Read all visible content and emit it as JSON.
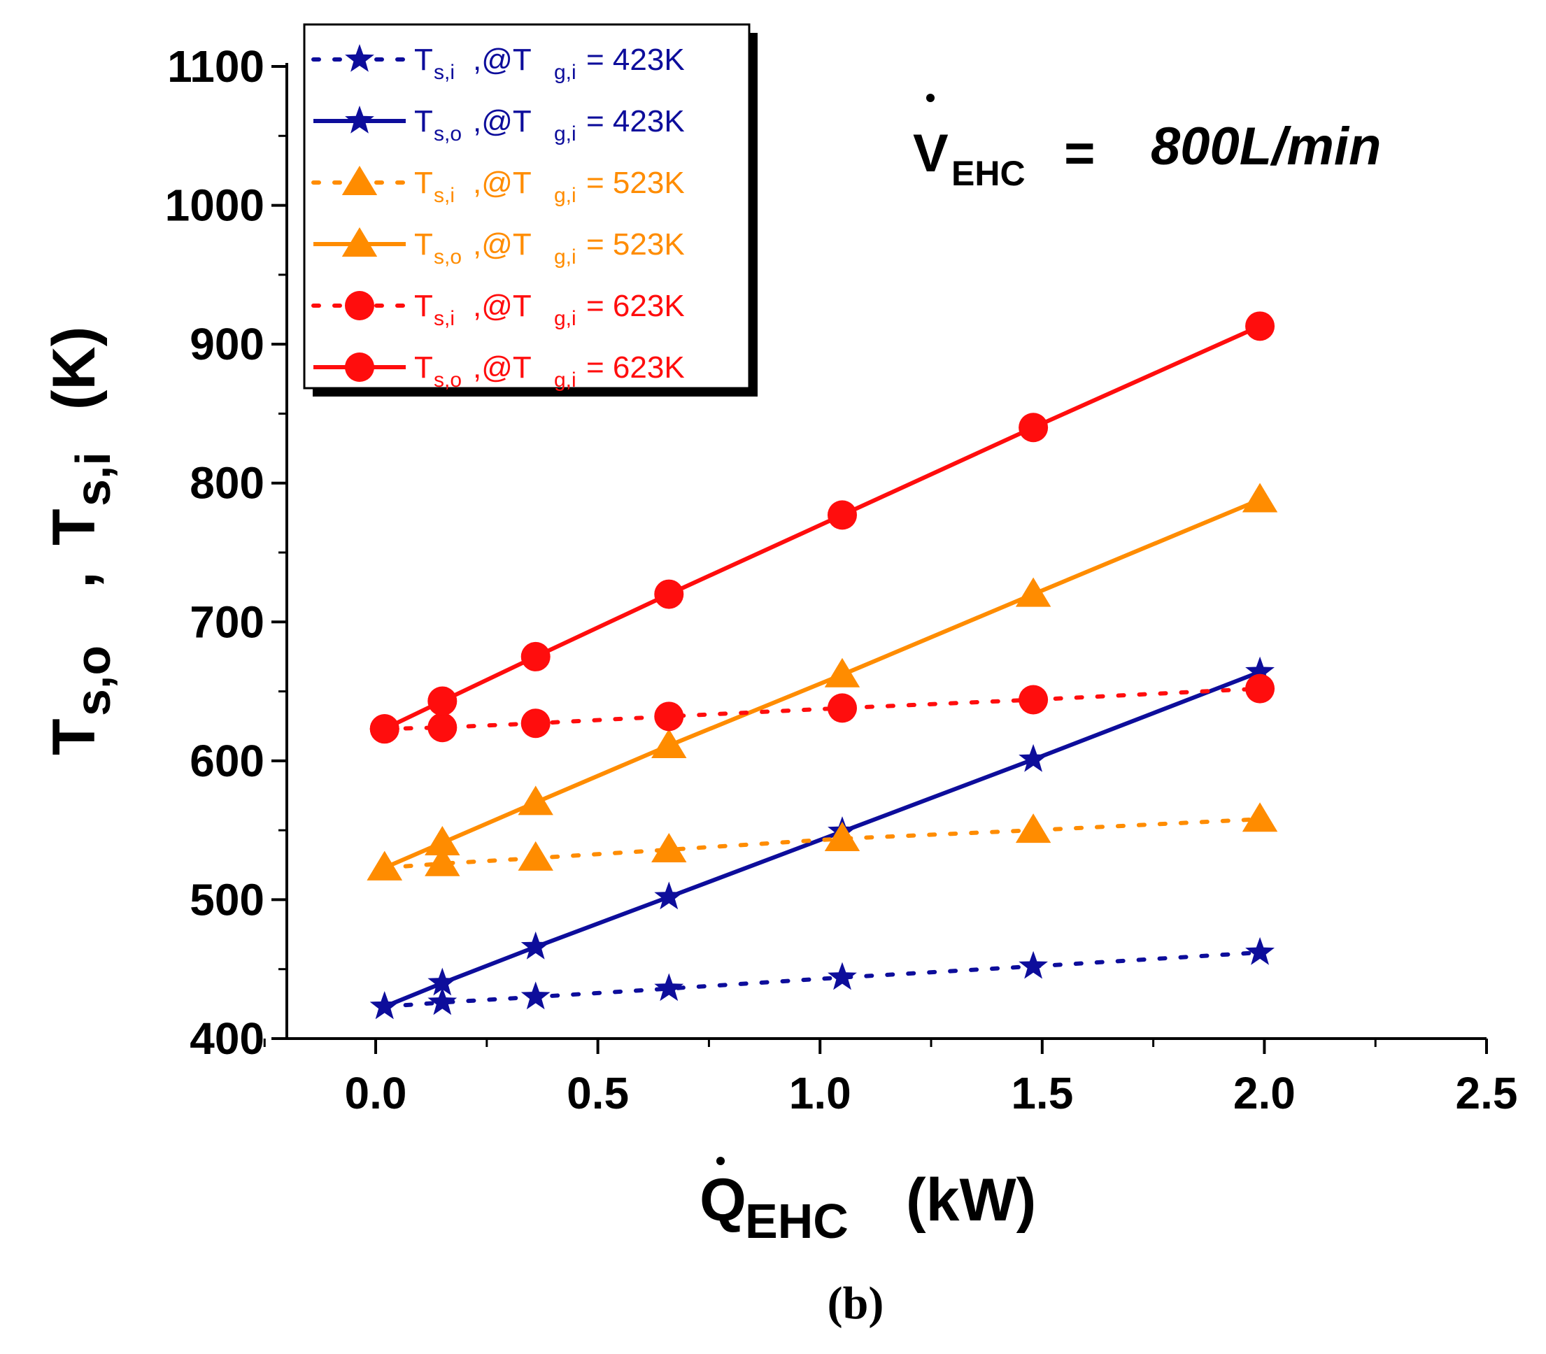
{
  "chart_data": {
    "type": "line",
    "xlabel_main": "Q",
    "xlabel_sub": "EHC",
    "xlabel_unit": "(kW)",
    "ylabel": "T s,o , T s,i (K)",
    "ylabel_parts": {
      "t1": "T",
      "s1": "s,o",
      "sep": " , ",
      "t2": "T",
      "s2": "s,i",
      "unit": " (K)"
    },
    "xlim": [
      -0.2,
      2.5
    ],
    "ylim": [
      400,
      1100
    ],
    "xticks": [
      0.0,
      0.5,
      1.0,
      1.5,
      2.0,
      2.5
    ],
    "xtick_labels": [
      "0.0",
      "0.5",
      "1.0",
      "1.5",
      "2.0",
      "2.5"
    ],
    "yticks": [
      400,
      500,
      600,
      700,
      800,
      900,
      1000,
      1100
    ],
    "ytick_labels": [
      "400",
      "500",
      "600",
      "700",
      "800",
      "900",
      "1000",
      "1100"
    ],
    "annotation": {
      "main": "V",
      "sub": "EHC",
      "eq": " = ",
      "value": "800L/min"
    },
    "caption": "(b)",
    "series": [
      {
        "name": "T s,i ,@T g,i = 423K",
        "var": "T",
        "var_sub": "s,i",
        "cond": " ,@T",
        "cond_sub": "g,i",
        "value": " =  423K",
        "color": "#0d0d9b",
        "marker": "star",
        "style": "dotted",
        "x": [
          0.02,
          0.15,
          0.36,
          0.66,
          1.05,
          1.48,
          1.99
        ],
        "y": [
          423,
          426,
          430,
          436,
          444,
          452,
          462
        ]
      },
      {
        "name": "T s,o ,@T g,i = 423K",
        "var": "T",
        "var_sub": "s,o",
        "cond": " ,@T",
        "cond_sub": "g,i",
        "value": " =  423K",
        "color": "#0d0d9b",
        "marker": "star",
        "style": "solid",
        "x": [
          0.02,
          0.15,
          0.36,
          0.66,
          1.05,
          1.48,
          1.99
        ],
        "y": [
          423,
          440,
          466,
          502,
          549,
          601,
          664
        ]
      },
      {
        "name": "T s,i ,@T g,i = 523K",
        "var": "T",
        "var_sub": "s,i",
        "cond": " ,@T",
        "cond_sub": "g,i",
        "value": " =  523K",
        "color": "#ff8c00",
        "marker": "triangle",
        "style": "dotted",
        "x": [
          0.02,
          0.15,
          0.36,
          0.66,
          1.05,
          1.48,
          1.99
        ],
        "y": [
          523,
          526,
          530,
          536,
          544,
          550,
          558
        ]
      },
      {
        "name": "T s,o ,@T g,i = 523K",
        "var": "T",
        "var_sub": "s,o",
        "cond": " ,@T",
        "cond_sub": "g,i",
        "value": " =  523K",
        "color": "#ff8c00",
        "marker": "triangle",
        "style": "solid",
        "x": [
          0.02,
          0.15,
          0.36,
          0.66,
          1.05,
          1.48,
          1.99
        ],
        "y": [
          523,
          541,
          570,
          611,
          662,
          720,
          788
        ]
      },
      {
        "name": "T s,i ,@T g,i = 623K",
        "var": "T",
        "var_sub": "s,i",
        "cond": " ,@T",
        "cond_sub": "g,i",
        "value": " =  623K",
        "color": "#ff0d0d",
        "marker": "circle",
        "style": "dotted",
        "x": [
          0.02,
          0.15,
          0.36,
          0.66,
          1.05,
          1.48,
          1.99
        ],
        "y": [
          623,
          624,
          627,
          632,
          638,
          644,
          652
        ]
      },
      {
        "name": "T s,o ,@T g,i = 623K",
        "var": "T",
        "var_sub": "s,o",
        "cond": " ,@T",
        "cond_sub": "g,i",
        "value": " =  623K",
        "color": "#ff0d0d",
        "marker": "circle",
        "style": "solid",
        "x": [
          0.02,
          0.15,
          0.36,
          0.66,
          1.05,
          1.48,
          1.99
        ],
        "y": [
          623,
          643,
          675,
          720,
          777,
          840,
          913
        ]
      }
    ]
  }
}
